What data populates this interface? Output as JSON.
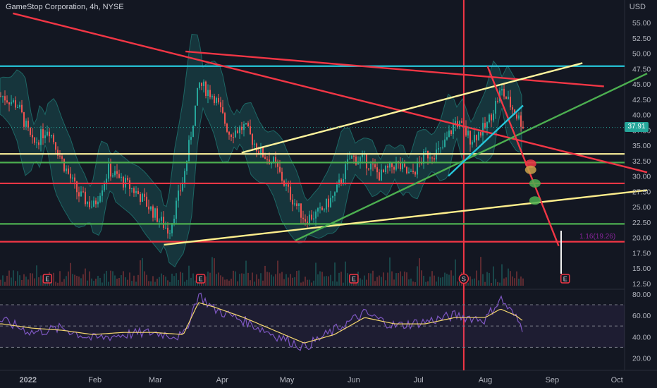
{
  "header": {
    "title": "GameStop Corporation, 4h, NYSE",
    "currency": "USD"
  },
  "last_price": "37.91",
  "fib_label": "1.16(19.26)",
  "event_markers": [
    {
      "label": "E",
      "x": "2022-01-10"
    },
    {
      "label": "E",
      "x": "2022-03-22"
    },
    {
      "label": "E",
      "x": "2022-06-01"
    },
    {
      "label": "S",
      "x": "2022-07-22"
    },
    {
      "label": "E",
      "x": "2022-09-07"
    }
  ],
  "colors": {
    "background": "#131722",
    "candle_up": "#26a69a",
    "candle_down": "#ef5350",
    "red_line": "#f23645",
    "yellow_line": "#ffee8c",
    "green_line": "#4caf50",
    "cyan_line": "#26c6da",
    "white_line": "#fff59d",
    "rsi_line": "#7e57c2",
    "rsi_ma": "#f5d76e",
    "volume": "#2a2e39"
  },
  "chart_data": [
    {
      "type": "candlestick",
      "xlabel": "",
      "ylabel": "",
      "x_ticks": [
        "2022",
        "Feb",
        "Mar",
        "Apr",
        "May",
        "Jun",
        "Jul",
        "Aug",
        "Sep",
        "Oct"
      ],
      "y_ticks": [
        12.5,
        15,
        17.5,
        20,
        22.5,
        25,
        27.5,
        30,
        32.5,
        35,
        37.5,
        40,
        42.5,
        45,
        47.5,
        50,
        52.5,
        55
      ],
      "ylim": [
        12.5,
        56
      ],
      "grid": false,
      "close_series": {
        "x": [
          "2021-12-20",
          "2021-12-27",
          "2022-01-03",
          "2022-01-10",
          "2022-01-17",
          "2022-01-24",
          "2022-01-31",
          "2022-02-07",
          "2022-02-14",
          "2022-02-21",
          "2022-02-28",
          "2022-03-07",
          "2022-03-14",
          "2022-03-21",
          "2022-03-28",
          "2022-04-04",
          "2022-04-11",
          "2022-04-18",
          "2022-04-25",
          "2022-05-02",
          "2022-05-09",
          "2022-05-16",
          "2022-05-23",
          "2022-05-30",
          "2022-06-06",
          "2022-06-13",
          "2022-06-20",
          "2022-06-27",
          "2022-07-04",
          "2022-07-11",
          "2022-07-18",
          "2022-07-25",
          "2022-08-01",
          "2022-08-08",
          "2022-08-15",
          "2022-08-19"
        ],
        "values": [
          43.0,
          41.5,
          35.0,
          38.0,
          32.0,
          27.0,
          25.0,
          31.0,
          29.0,
          27.0,
          24.0,
          21.0,
          30.0,
          45.0,
          43.0,
          37.0,
          38.0,
          34.0,
          32.0,
          27.0,
          23.0,
          24.0,
          27.0,
          33.0,
          32.5,
          30.0,
          32.0,
          30.0,
          33.5,
          34.0,
          39.0,
          36.0,
          38.0,
          44.0,
          40.0,
          37.91
        ]
      },
      "series": [
        {
          "name": "Bollinger Bands",
          "kind": "band"
        },
        {
          "name": "Volume",
          "kind": "bars"
        }
      ],
      "horizontal_levels": [
        {
          "value": 47.9,
          "color": "cyan"
        },
        {
          "value": 33.6,
          "color": "white"
        },
        {
          "value": 32.2,
          "color": "green"
        },
        {
          "value": 28.8,
          "color": "red"
        },
        {
          "value": 22.2,
          "color": "green"
        },
        {
          "value": 19.3,
          "color": "red"
        }
      ],
      "trendlines": [
        {
          "from": [
            "2021-12-25",
            56.5
          ],
          "to": [
            "2022-10-15",
            30.6
          ],
          "color": "red"
        },
        {
          "from": [
            "2022-03-15",
            50.3
          ],
          "to": [
            "2022-09-25",
            44.6
          ],
          "color": "red"
        },
        {
          "from": [
            "2022-04-10",
            33.8
          ],
          "to": [
            "2022-09-15",
            48.4
          ],
          "color": "white"
        },
        {
          "from": [
            "2022-03-05",
            18.8
          ],
          "to": [
            "2022-10-15",
            27.7
          ],
          "color": "yellow"
        },
        {
          "from": [
            "2022-05-05",
            19.5
          ],
          "to": [
            "2022-10-15",
            46.7
          ],
          "color": "green"
        },
        {
          "from": [
            "2022-08-02",
            47.9
          ],
          "to": [
            "2022-09-04",
            18.6
          ],
          "color": "red"
        }
      ],
      "vertical_marker": {
        "x": "2022-07-22"
      },
      "projected_dots": [
        {
          "x": "2022-08-22",
          "y": 32.0,
          "color": "red"
        },
        {
          "x": "2022-08-22",
          "y": 31.0,
          "color": "orange"
        },
        {
          "x": "2022-08-24",
          "y": 28.8,
          "color": "green"
        },
        {
          "x": "2022-08-24",
          "y": 26.0,
          "color": "green"
        }
      ]
    },
    {
      "type": "line",
      "name": "RSI",
      "y_ticks": [
        20,
        40,
        60,
        80
      ],
      "ylim": [
        15,
        88
      ],
      "bands": [
        30,
        50,
        70
      ],
      "x": [
        "2021-12-20",
        "2022-01-03",
        "2022-01-17",
        "2022-01-31",
        "2022-02-14",
        "2022-02-28",
        "2022-03-14",
        "2022-03-21",
        "2022-03-28",
        "2022-04-11",
        "2022-04-25",
        "2022-05-09",
        "2022-05-23",
        "2022-06-06",
        "2022-06-20",
        "2022-07-04",
        "2022-07-18",
        "2022-08-01",
        "2022-08-08",
        "2022-08-15",
        "2022-08-19"
      ],
      "series": [
        {
          "kind": "rsi",
          "values": [
            55,
            44,
            48,
            38,
            42,
            44,
            40,
            80,
            66,
            55,
            42,
            30,
            46,
            62,
            50,
            54,
            60,
            56,
            76,
            58,
            46
          ]
        },
        {
          "kind": "rsi_ma",
          "values": [
            52,
            48,
            46,
            42,
            44,
            44,
            42,
            72,
            68,
            58,
            46,
            34,
            42,
            58,
            52,
            52,
            58,
            58,
            66,
            60,
            54
          ]
        }
      ]
    }
  ]
}
